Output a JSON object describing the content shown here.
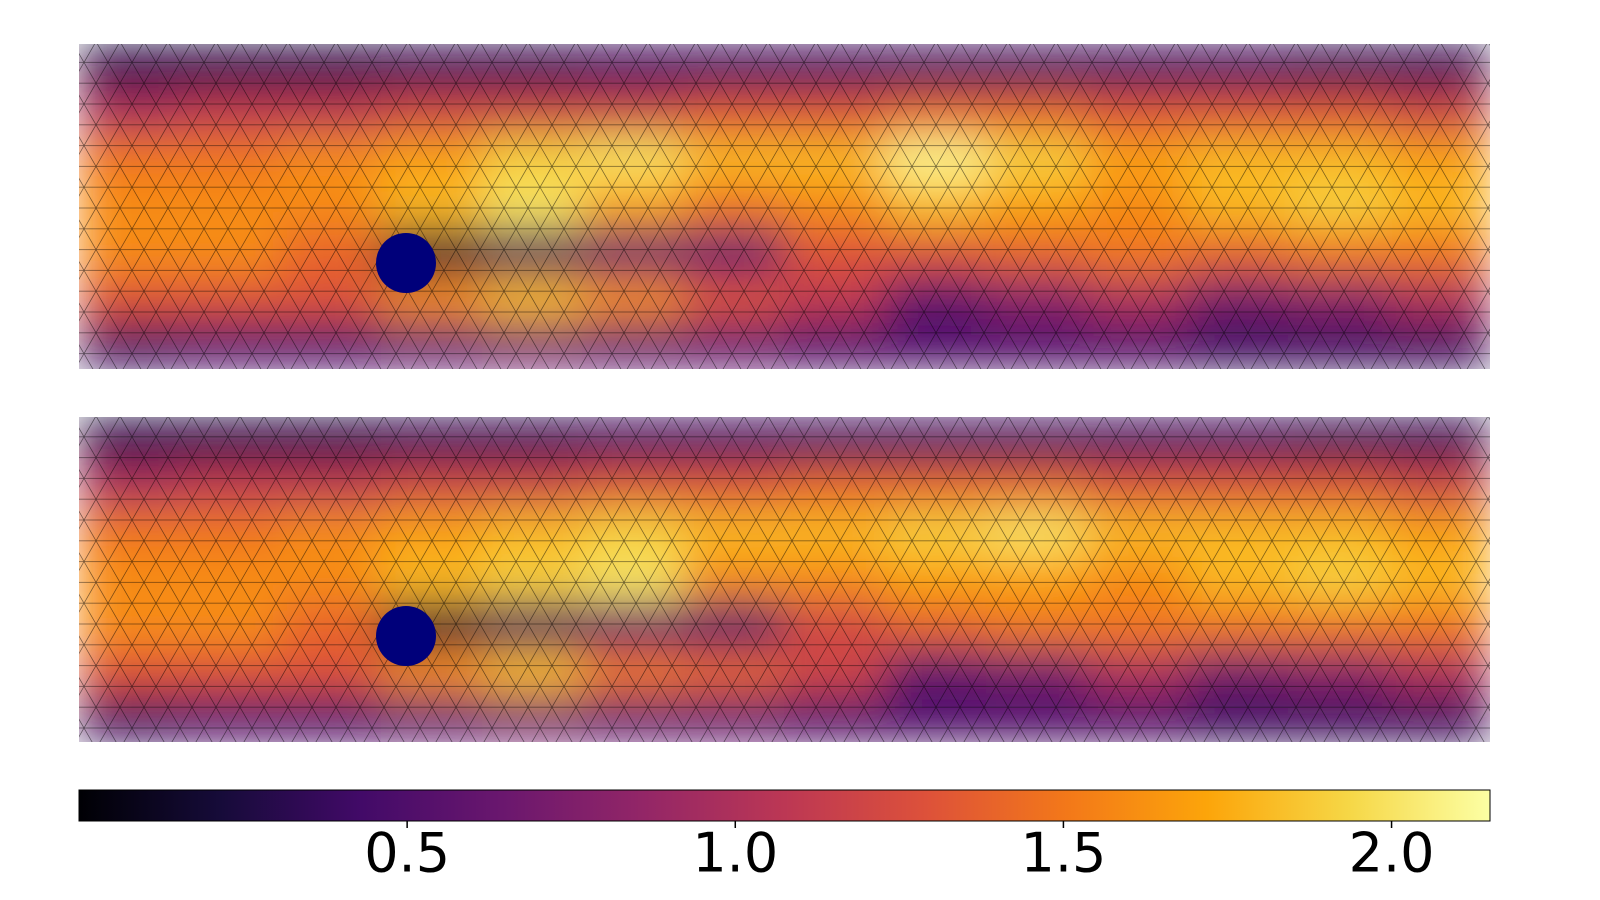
{
  "chart_data": {
    "type": "heatmap",
    "colormap": "inferno",
    "clim": [
      0,
      2.15
    ],
    "cticks": [
      {
        "value": 0.5,
        "label": "0.5"
      },
      {
        "value": 1.0,
        "label": "1.0"
      },
      {
        "value": 1.5,
        "label": "1.5"
      },
      {
        "value": 2.0,
        "label": "2.0"
      }
    ],
    "panels": [
      {
        "values": [
          [
            0.3,
            0.3,
            0.3,
            0.35,
            0.35,
            0.4,
            0.4,
            0.4,
            0.4,
            0.4,
            0.4,
            0.4,
            0.35,
            0.35
          ],
          [
            1.0,
            1.1,
            1.1,
            1.2,
            1.2,
            1.2,
            1.3,
            1.3,
            1.4,
            1.4,
            1.3,
            1.3,
            1.3,
            1.2
          ],
          [
            1.5,
            1.5,
            1.6,
            1.7,
            1.9,
            2.0,
            1.8,
            1.8,
            2.1,
            1.9,
            1.7,
            1.8,
            1.8,
            1.7
          ],
          [
            1.6,
            1.6,
            1.6,
            1.8,
            2.0,
            1.7,
            1.5,
            1.6,
            1.8,
            1.7,
            1.6,
            1.8,
            1.9,
            1.8
          ],
          [
            1.6,
            1.6,
            1.4,
            0.2,
            0.4,
            0.6,
            0.6,
            1.3,
            1.3,
            1.4,
            1.5,
            1.4,
            1.5,
            1.5
          ],
          [
            1.3,
            1.3,
            1.3,
            1.6,
            1.8,
            1.6,
            1.3,
            1.1,
            0.6,
            0.8,
            1.0,
            0.7,
            0.8,
            1.0
          ],
          [
            0.4,
            0.5,
            0.5,
            0.6,
            0.7,
            0.6,
            0.6,
            0.5,
            0.5,
            0.5,
            0.5,
            0.4,
            0.4,
            0.4
          ]
        ]
      },
      {
        "values": [
          [
            0.3,
            0.3,
            0.3,
            0.35,
            0.35,
            0.4,
            0.4,
            0.4,
            0.4,
            0.4,
            0.4,
            0.4,
            0.35,
            0.35
          ],
          [
            1.0,
            1.1,
            1.1,
            1.2,
            1.2,
            1.3,
            1.3,
            1.4,
            1.4,
            1.4,
            1.3,
            1.3,
            1.3,
            1.2
          ],
          [
            1.5,
            1.5,
            1.6,
            1.7,
            1.8,
            1.9,
            1.8,
            1.8,
            1.9,
            2.0,
            1.8,
            1.8,
            1.8,
            1.7
          ],
          [
            1.6,
            1.6,
            1.6,
            1.8,
            1.9,
            2.0,
            1.6,
            1.6,
            1.7,
            1.7,
            1.6,
            1.8,
            1.9,
            1.8
          ],
          [
            1.6,
            1.6,
            1.4,
            0.2,
            0.4,
            0.6,
            0.5,
            1.2,
            1.4,
            1.5,
            1.5,
            1.5,
            1.5,
            1.5
          ],
          [
            1.3,
            1.3,
            1.3,
            1.6,
            1.8,
            1.5,
            1.4,
            1.2,
            0.6,
            0.7,
            1.0,
            0.7,
            0.8,
            1.0
          ],
          [
            0.4,
            0.5,
            0.5,
            0.6,
            0.7,
            0.6,
            0.6,
            0.5,
            0.5,
            0.5,
            0.5,
            0.4,
            0.4,
            0.4
          ]
        ]
      }
    ]
  }
}
